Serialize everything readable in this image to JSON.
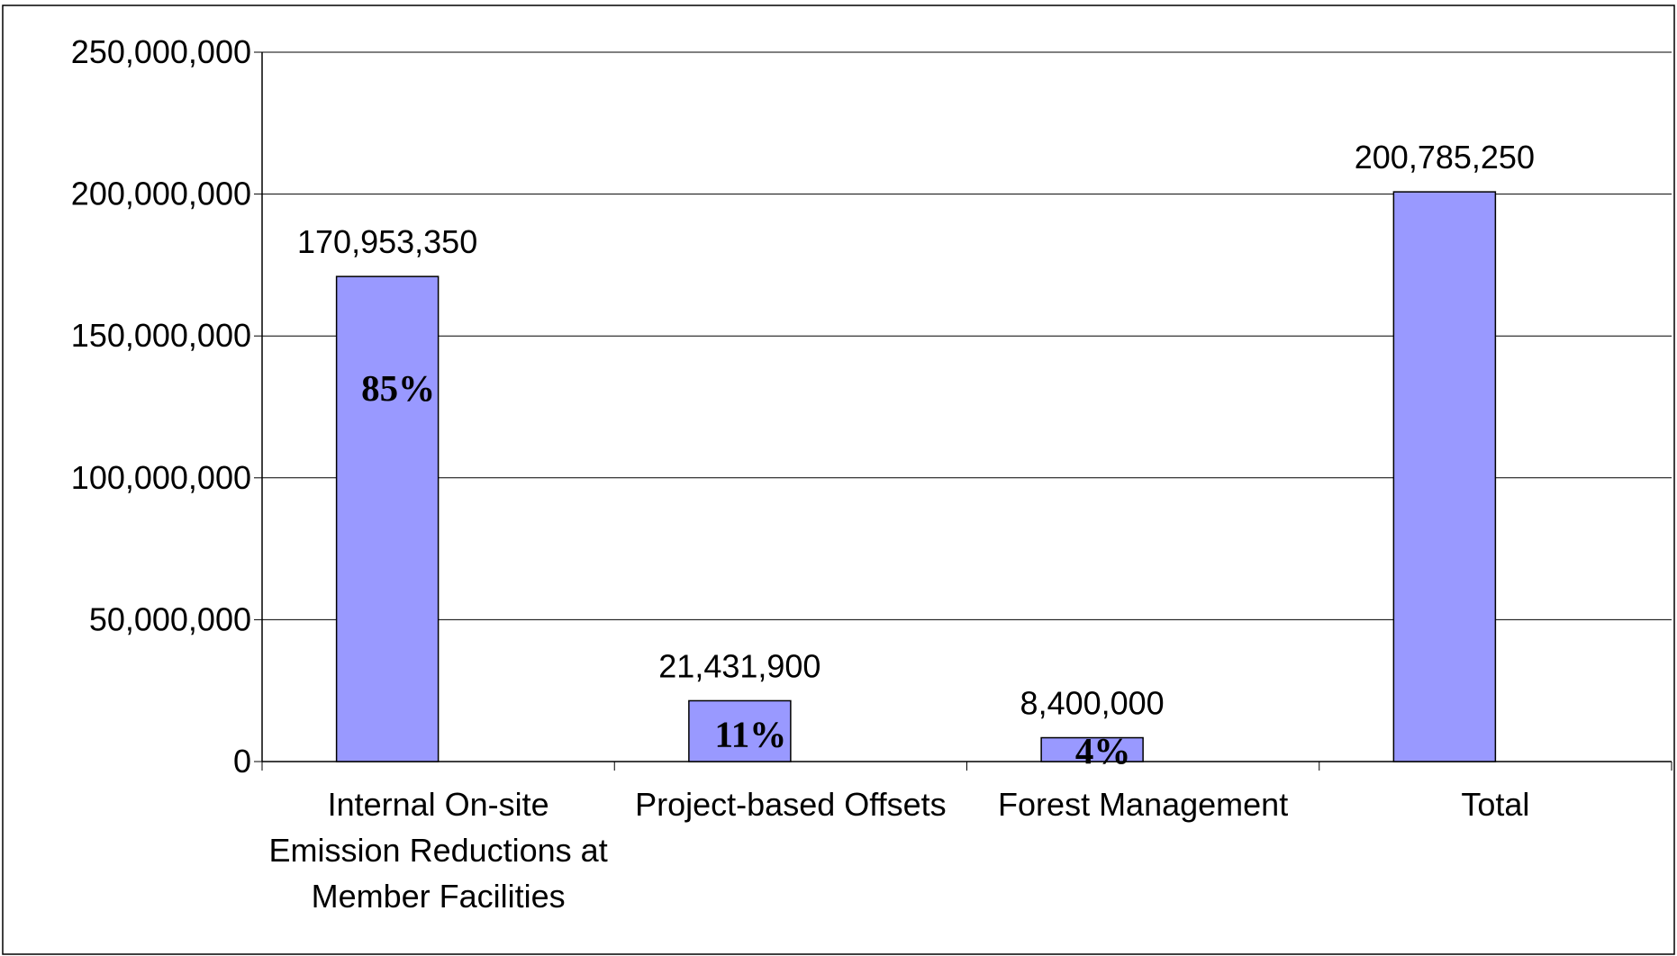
{
  "chart_data": {
    "type": "bar",
    "categories": [
      "Internal On-site Emission Reductions at Member Facilities",
      "Project-based Offsets",
      "Forest Management",
      "Total"
    ],
    "values": [
      170953350,
      21431900,
      8400000,
      200785250
    ],
    "value_labels": [
      "170,953,350",
      "21,431,900",
      "8,400,000",
      "200,785,250"
    ],
    "share_labels": [
      "85%",
      "11%",
      "4%",
      null
    ],
    "color": "#9999ff",
    "ylim": [
      0,
      250000000
    ],
    "yticks": [
      0,
      {
        "value": 50000000,
        "label": "50,000,000"
      },
      {
        "value": 100000000,
        "label": "100,000,000"
      },
      {
        "value": 150000000,
        "label": "150,000,000"
      },
      {
        "value": 200000000,
        "label": "200,000,000"
      },
      {
        "value": 250000000,
        "label": "250,000,000"
      }
    ],
    "grid": true
  }
}
